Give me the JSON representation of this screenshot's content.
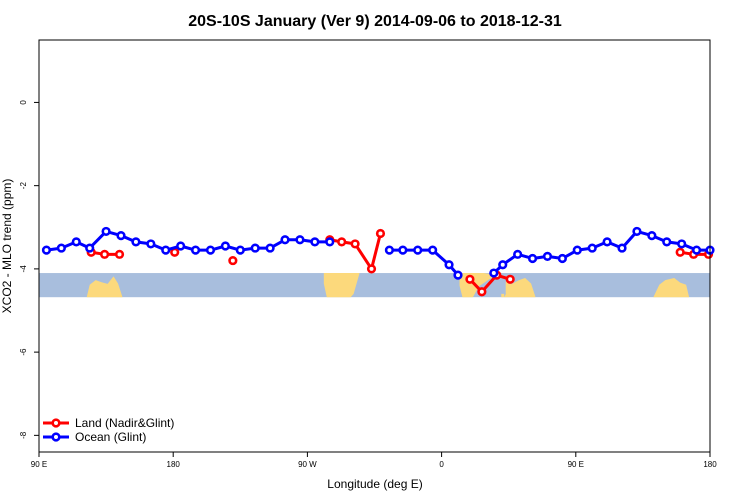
{
  "chart_data": {
    "type": "line",
    "title": "20S-10S January (Ver 9)   2014-09-06 to 2018-12-31",
    "xlabel": "Longitude (deg E)",
    "ylabel": "XCO2 - MLO trend (ppm)",
    "xlim": [
      90,
      540
    ],
    "ylim": [
      -8.4,
      1.5
    ],
    "x_ticks": [
      {
        "value": 90,
        "label": "90 E"
      },
      {
        "value": 180,
        "label": "180"
      },
      {
        "value": 270,
        "label": "90 W"
      },
      {
        "value": 360,
        "label": "0"
      },
      {
        "value": 450,
        "label": "90 E"
      },
      {
        "value": 540,
        "label": "180"
      }
    ],
    "y_ticks": [
      {
        "value": 0,
        "label": "0"
      },
      {
        "value": -2,
        "label": "-2"
      },
      {
        "value": -4,
        "label": "-4"
      },
      {
        "value": -6,
        "label": "-6"
      },
      {
        "value": -8,
        "label": "-8"
      }
    ],
    "grid": false,
    "legend_position": "bottom-left",
    "land_band": {
      "y_top": -4.1,
      "y_bottom": -4.68,
      "ocean_color": "#a8bedd",
      "land_color": "#fcd97c"
    },
    "land_regions": [
      {
        "points": [
          [
            122,
            -4.68
          ],
          [
            124,
            -4.38
          ],
          [
            128,
            -4.27
          ],
          [
            132,
            -4.32
          ],
          [
            136,
            -4.36
          ],
          [
            140,
            -4.18
          ],
          [
            143,
            -4.35
          ],
          [
            146,
            -4.68
          ]
        ]
      },
      {
        "points": [
          [
            281,
            -4.1
          ],
          [
            305,
            -4.1
          ],
          [
            301,
            -4.6
          ],
          [
            299,
            -4.68
          ],
          [
            283,
            -4.68
          ],
          [
            281,
            -4.35
          ]
        ]
      },
      {
        "points": [
          [
            302,
            -4.1
          ],
          [
            304,
            -4.1
          ],
          [
            303,
            -4.28
          ],
          [
            301,
            -4.3
          ]
        ]
      },
      {
        "points": [
          [
            402,
            -4.68
          ],
          [
            406,
            -4.38
          ],
          [
            412,
            -4.27
          ],
          [
            416,
            -4.22
          ],
          [
            420,
            -4.35
          ],
          [
            423,
            -4.68
          ]
        ]
      },
      {
        "points": [
          [
            400,
            -4.68
          ],
          [
            400,
            -4.6
          ],
          [
            402,
            -4.6
          ],
          [
            402,
            -4.68
          ]
        ]
      },
      {
        "points": [
          [
            502,
            -4.68
          ],
          [
            506,
            -4.38
          ],
          [
            510,
            -4.27
          ],
          [
            516,
            -4.22
          ],
          [
            520,
            -4.33
          ],
          [
            524,
            -4.38
          ],
          [
            526,
            -4.68
          ]
        ]
      }
    ],
    "land_region_africa": {
      "points": [
        [
          372,
          -4.1
        ],
        [
          388,
          -4.1
        ],
        [
          397,
          -4.15
        ],
        [
          392,
          -4.25
        ],
        [
          385,
          -4.42
        ],
        [
          381,
          -4.68
        ],
        [
          374,
          -4.68
        ],
        [
          372,
          -4.4
        ]
      ]
    },
    "land_region_madagascar": {
      "points": [
        [
          403,
          -4.3
        ],
        [
          407,
          -4.25
        ],
        [
          406,
          -4.5
        ],
        [
          403,
          -4.6
        ]
      ]
    },
    "series": [
      {
        "name": "Land (Nadir&Glint)",
        "color": "#ff0000",
        "points": [
          [
            125,
            -3.6
          ],
          [
            134,
            -3.65
          ],
          [
            144,
            -3.65
          ],
          null,
          [
            181,
            -3.6
          ],
          null,
          [
            220,
            -3.8
          ],
          null,
          [
            285,
            -3.3
          ],
          [
            293,
            -3.35
          ],
          [
            302,
            -3.4
          ],
          [
            313,
            -4.0
          ],
          [
            319,
            -3.15
          ],
          null,
          [
            379,
            -4.25
          ],
          [
            387,
            -4.55
          ],
          [
            397,
            -4.15
          ],
          [
            406,
            -4.25
          ],
          null,
          [
            520,
            -3.6
          ],
          [
            529,
            -3.65
          ],
          [
            539,
            -3.65
          ]
        ]
      },
      {
        "name": "Ocean (Glint)",
        "color": "#0000ff",
        "points": [
          [
            95,
            -3.55
          ],
          [
            105,
            -3.5
          ],
          [
            115,
            -3.35
          ],
          [
            124,
            -3.5
          ],
          [
            135,
            -3.1
          ],
          [
            145,
            -3.2
          ],
          [
            155,
            -3.35
          ],
          [
            165,
            -3.4
          ],
          [
            175,
            -3.55
          ],
          [
            185,
            -3.45
          ],
          [
            195,
            -3.55
          ],
          [
            205,
            -3.55
          ],
          [
            215,
            -3.45
          ],
          [
            225,
            -3.55
          ],
          [
            235,
            -3.5
          ],
          [
            245,
            -3.5
          ],
          [
            255,
            -3.3
          ],
          [
            265,
            -3.3
          ],
          [
            275,
            -3.35
          ],
          [
            285,
            -3.35
          ],
          null,
          [
            325,
            -3.55
          ],
          [
            334,
            -3.55
          ],
          [
            344,
            -3.55
          ],
          [
            354,
            -3.55
          ],
          [
            365,
            -3.9
          ],
          [
            371,
            -4.15
          ],
          null,
          [
            395,
            -4.1
          ],
          [
            401,
            -3.9
          ],
          [
            411,
            -3.65
          ],
          [
            421,
            -3.75
          ],
          [
            431,
            -3.7
          ],
          [
            441,
            -3.75
          ],
          [
            451,
            -3.55
          ],
          [
            461,
            -3.5
          ],
          [
            471,
            -3.35
          ],
          [
            481,
            -3.5
          ],
          [
            491,
            -3.1
          ],
          [
            501,
            -3.2
          ],
          [
            511,
            -3.35
          ],
          [
            521,
            -3.4
          ],
          [
            531,
            -3.55
          ],
          [
            540,
            -3.55
          ]
        ]
      }
    ]
  }
}
